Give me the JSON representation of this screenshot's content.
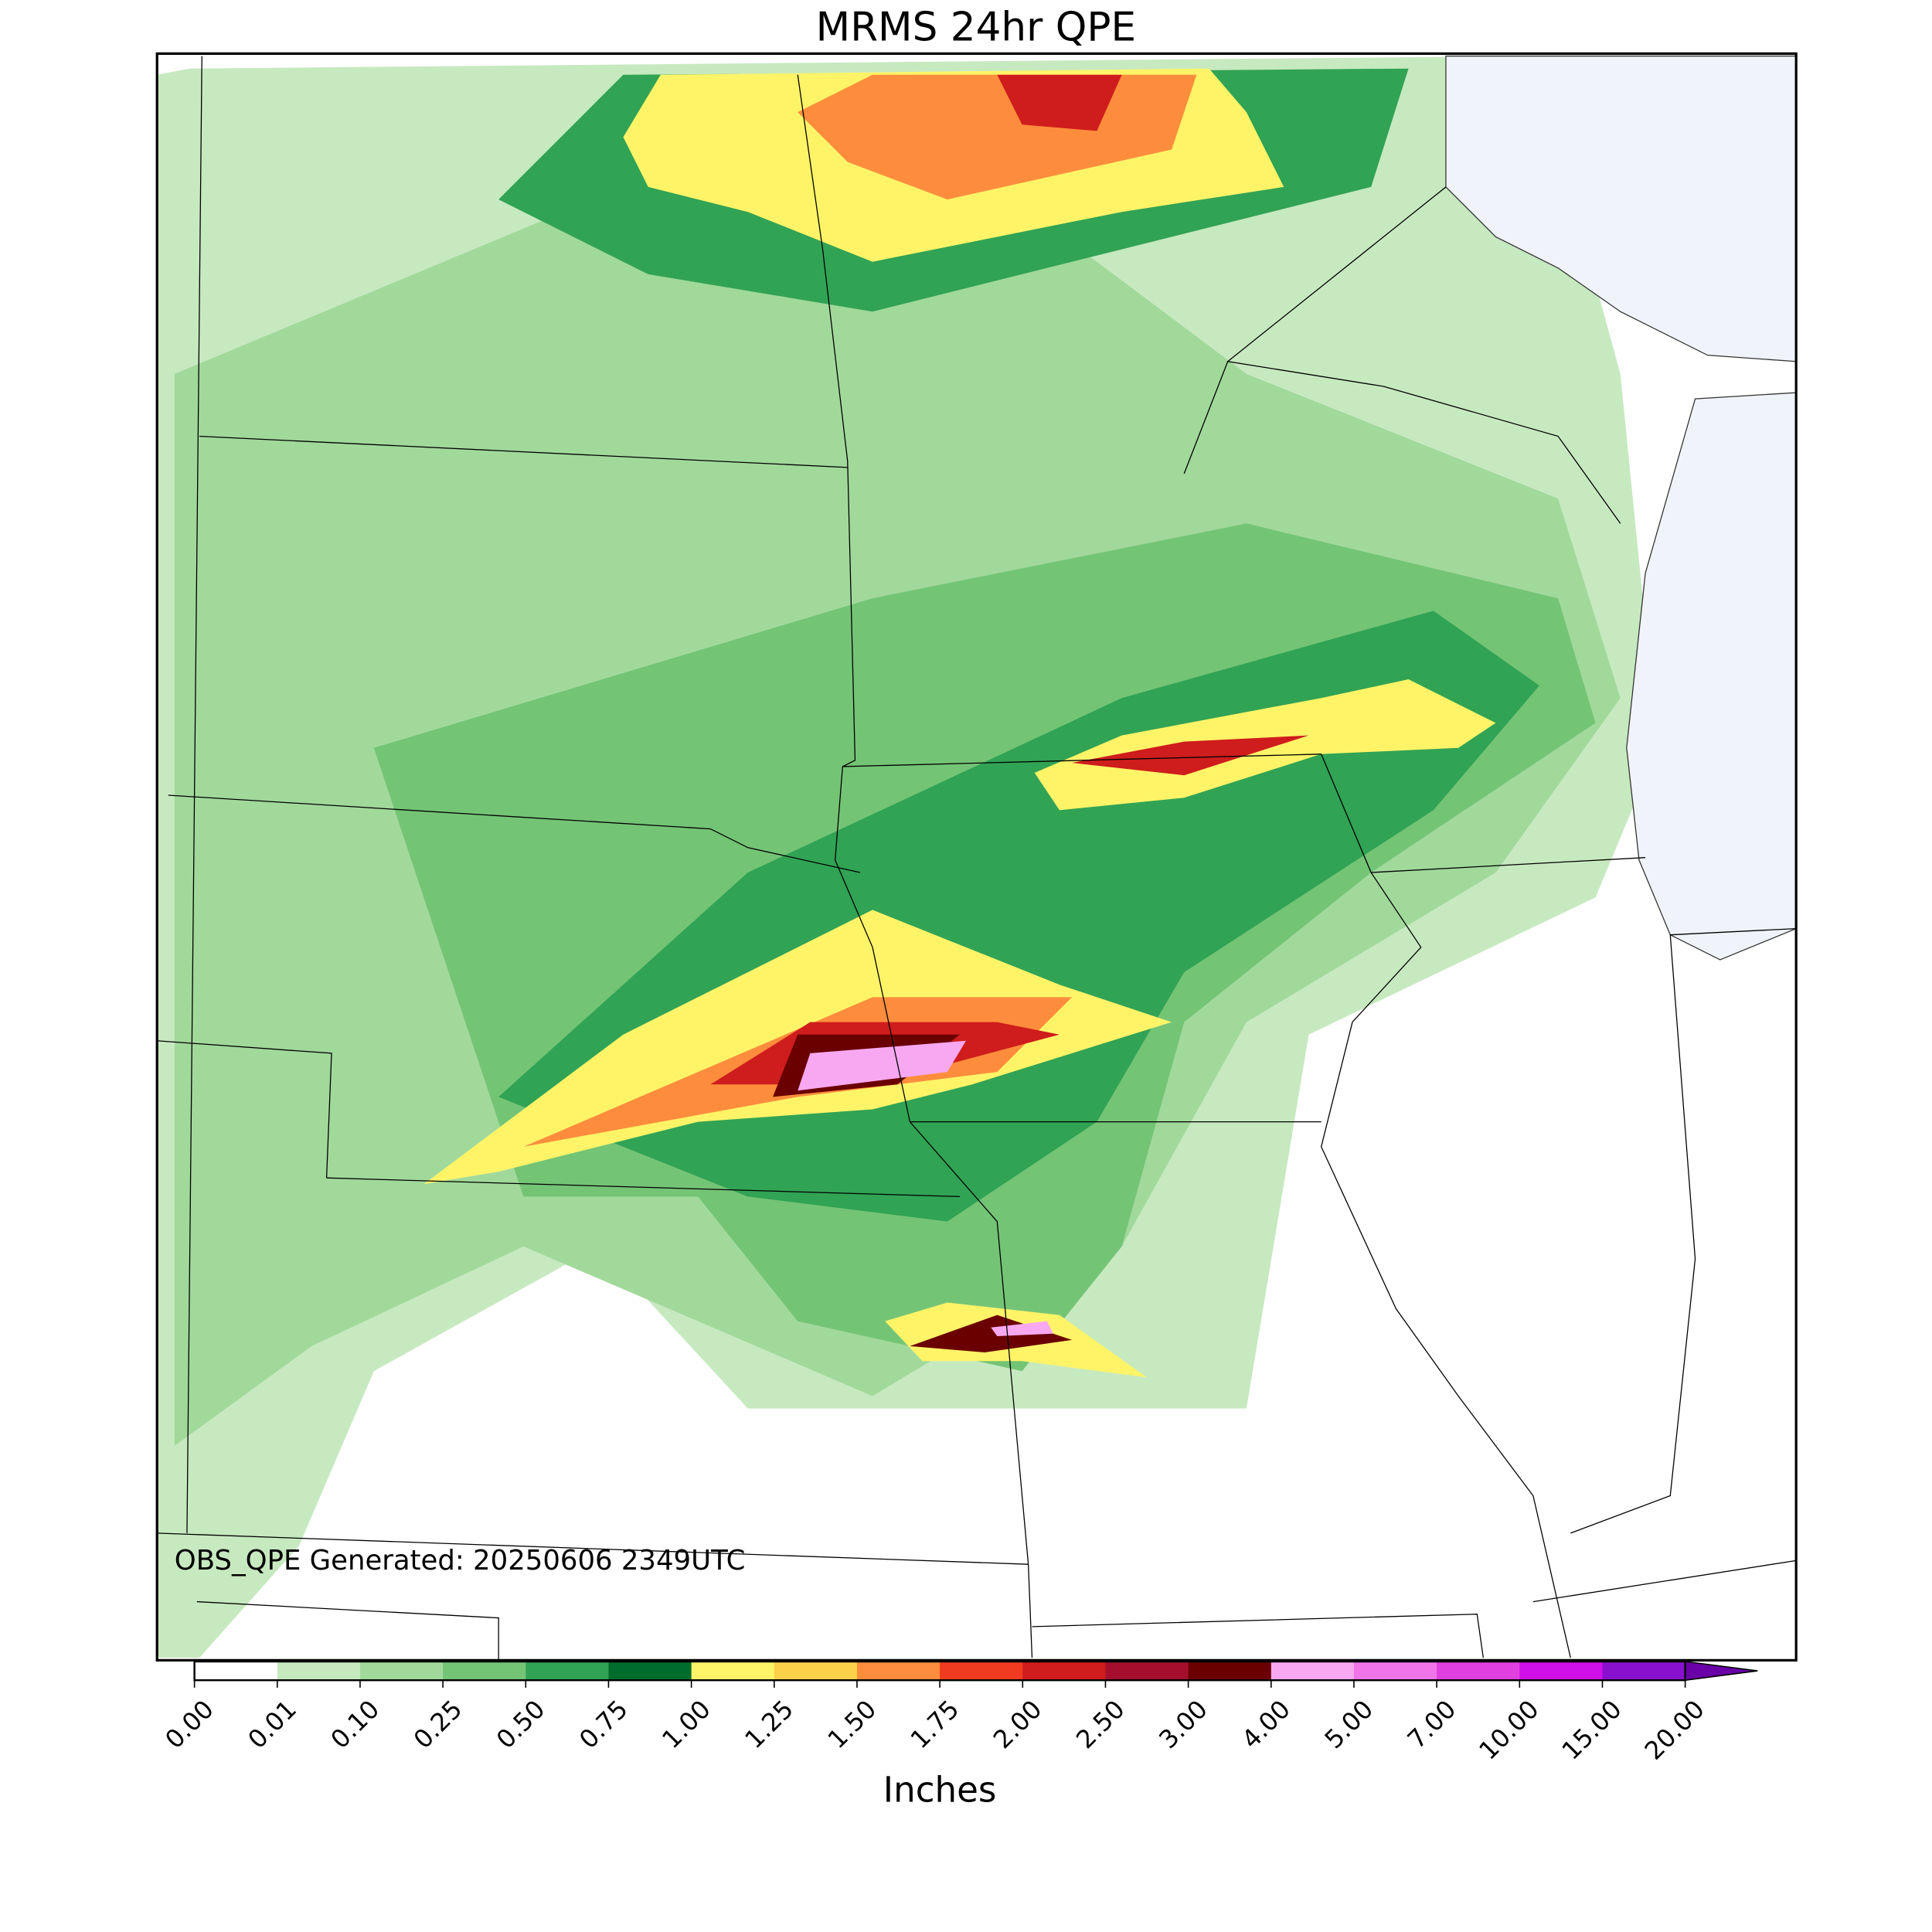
{
  "title": "MRMS 24hr QPE",
  "annotation": "OBS_QPE Generated: 20250606 2349UTC",
  "colorbar": {
    "label": "Inches",
    "ticks": [
      {
        "value": 0,
        "label": "0.00"
      },
      {
        "value": 0.01,
        "label": "0.01"
      },
      {
        "value": 0.1,
        "label": "0.10"
      },
      {
        "value": 0.25,
        "label": "0.25"
      },
      {
        "value": 0.5,
        "label": "0.50"
      },
      {
        "value": 0.75,
        "label": "0.75"
      },
      {
        "value": 1,
        "label": "1.00"
      },
      {
        "value": 1.25,
        "label": "1.25"
      },
      {
        "value": 1.5,
        "label": "1.50"
      },
      {
        "value": 1.75,
        "label": "1.75"
      },
      {
        "value": 2,
        "label": "2.00"
      },
      {
        "value": 2.5,
        "label": "2.50"
      },
      {
        "value": 3,
        "label": "3.00"
      },
      {
        "value": 4,
        "label": "4.00"
      },
      {
        "value": 5,
        "label": "5.00"
      },
      {
        "value": 7,
        "label": "7.00"
      },
      {
        "value": 10,
        "label": "10.00"
      },
      {
        "value": 15,
        "label": "15.00"
      },
      {
        "value": 20,
        "label": "20.00"
      }
    ],
    "colors": [
      "#ffffff",
      "#c7e9c0",
      "#a1d99b",
      "#74c476",
      "#31a354",
      "#006d2c",
      "#fff468",
      "#fdd049",
      "#fd8d3c",
      "#f03b20",
      "#cf1c1c",
      "#a50f2d",
      "#6b0000",
      "#f7a8f0",
      "#f075e8",
      "#e040e0",
      "#d010e8",
      "#8a10d0"
    ],
    "extend_color": "#6a00a8"
  }
}
